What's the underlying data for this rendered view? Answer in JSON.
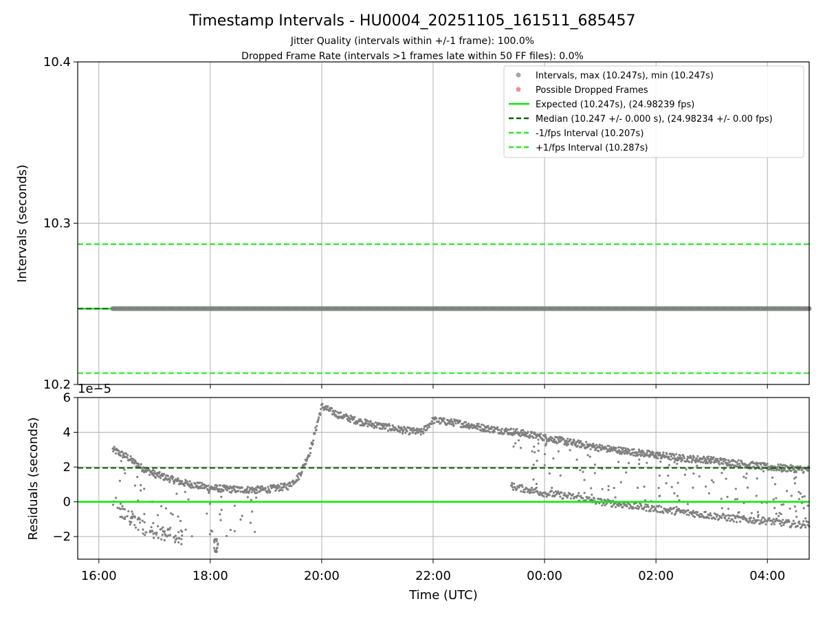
{
  "chart_data": {
    "title": "Timestamp Intervals - HU0004_20251105_161511_685457",
    "subtitles": [
      "Jitter Quality (intervals within +/-1 frame): 100.0%",
      "Dropped Frame Rate (intervals >1 frames late within 50 FF files): 0.0%"
    ],
    "xlabel": "Time (UTC)",
    "x_ticks": [
      {
        "hour": 16,
        "label": "16:00"
      },
      {
        "hour": 18,
        "label": "18:00"
      },
      {
        "hour": 20,
        "label": "20:00"
      },
      {
        "hour": 22,
        "label": "22:00"
      },
      {
        "hour": 24,
        "label": "00:00"
      },
      {
        "hour": 26,
        "label": "02:00"
      },
      {
        "hour": 28,
        "label": "04:00"
      }
    ],
    "xlim": [
      15.62,
      28.75
    ],
    "colors": {
      "points": "#808080",
      "dropped": "#f06060",
      "expected": "#00ee00",
      "median": "#006400",
      "interval_bounds": "#22ee22",
      "grid": "#b0b0b0"
    },
    "top_panel": {
      "type": "scatter",
      "ylabel": "Intervals (seconds)",
      "ylim": [
        10.2,
        10.4
      ],
      "y_ticks": [
        {
          "value": 10.2,
          "label": "10.2"
        },
        {
          "value": 10.3,
          "label": "10.3"
        },
        {
          "value": 10.4,
          "label": "10.4"
        }
      ],
      "series_interval": {
        "value": 10.247,
        "x_start": 16.25,
        "x_end": 28.75
      },
      "reference_lines": {
        "expected": 10.247,
        "median": 10.247,
        "minus_interval": 10.207,
        "plus_interval": 10.287
      },
      "legend": {
        "position": "top-right",
        "entries": [
          {
            "kind": "point",
            "color_key": "points",
            "label": "Intervals, max (10.247s), min (10.247s)"
          },
          {
            "kind": "point",
            "color_key": "dropped",
            "label": "Possible Dropped Frames"
          },
          {
            "kind": "solid",
            "color_key": "expected",
            "label": "Expected (10.247s), (24.98239 fps)"
          },
          {
            "kind": "dashed",
            "color_key": "median",
            "label": "Median (10.247 +/- 0.000 s), (24.98234 +/- 0.00 fps)"
          },
          {
            "kind": "dashed",
            "color_key": "interval_bounds",
            "label": "-1/fps Interval (10.207s)"
          },
          {
            "kind": "dashed",
            "color_key": "interval_bounds",
            "label": "+1/fps Interval (10.287s)"
          }
        ]
      }
    },
    "bottom_panel": {
      "type": "scatter",
      "ylabel": "Residuals (seconds)",
      "scale_label": "1e−5",
      "ylim": [
        -3.3,
        6.0
      ],
      "y_ticks": [
        {
          "value": -2,
          "label": "−2"
        },
        {
          "value": 0,
          "label": "0"
        },
        {
          "value": 2,
          "label": "2"
        },
        {
          "value": 4,
          "label": "4"
        },
        {
          "value": 6,
          "label": "6"
        }
      ],
      "reference_lines": {
        "expected": 0,
        "median": 1.95
      },
      "trend_main": [
        [
          16.25,
          3.0
        ],
        [
          16.5,
          2.6
        ],
        [
          16.75,
          2.0
        ],
        [
          17.0,
          1.6
        ],
        [
          17.5,
          1.1
        ],
        [
          18.0,
          0.8
        ],
        [
          18.5,
          0.7
        ],
        [
          19.0,
          0.7
        ],
        [
          19.4,
          0.9
        ],
        [
          19.6,
          1.5
        ],
        [
          19.8,
          3.0
        ],
        [
          20.0,
          5.5
        ],
        [
          20.3,
          5.0
        ],
        [
          20.7,
          4.6
        ],
        [
          21.0,
          4.4
        ],
        [
          21.5,
          4.1
        ],
        [
          21.8,
          4.0
        ],
        [
          22.0,
          4.7
        ],
        [
          22.5,
          4.5
        ],
        [
          23.0,
          4.2
        ],
        [
          23.5,
          4.0
        ],
        [
          24.0,
          3.7
        ],
        [
          24.5,
          3.4
        ],
        [
          25.0,
          3.1
        ],
        [
          25.5,
          2.9
        ],
        [
          26.0,
          2.7
        ],
        [
          26.5,
          2.5
        ],
        [
          27.0,
          2.4
        ],
        [
          27.5,
          2.2
        ],
        [
          28.0,
          2.0
        ],
        [
          28.5,
          1.9
        ],
        [
          28.75,
          1.85
        ]
      ],
      "trend_lower": [
        [
          16.25,
          0.3
        ],
        [
          16.4,
          -0.5
        ],
        [
          16.6,
          -1.0
        ],
        [
          16.8,
          -1.5
        ],
        [
          17.2,
          -1.8
        ],
        [
          17.5,
          -2.0
        ]
      ],
      "trend_late": [
        [
          23.4,
          0.9
        ],
        [
          23.7,
          0.7
        ],
        [
          24.0,
          0.5
        ],
        [
          24.5,
          0.3
        ],
        [
          25.0,
          0.0
        ],
        [
          25.5,
          -0.2
        ],
        [
          26.0,
          -0.4
        ],
        [
          26.5,
          -0.6
        ],
        [
          27.0,
          -0.8
        ],
        [
          27.5,
          -1.0
        ],
        [
          28.0,
          -1.1
        ],
        [
          28.5,
          -1.3
        ],
        [
          28.75,
          -1.3
        ]
      ],
      "cluster_1810": [
        18.1,
        -2.5
      ]
    }
  }
}
